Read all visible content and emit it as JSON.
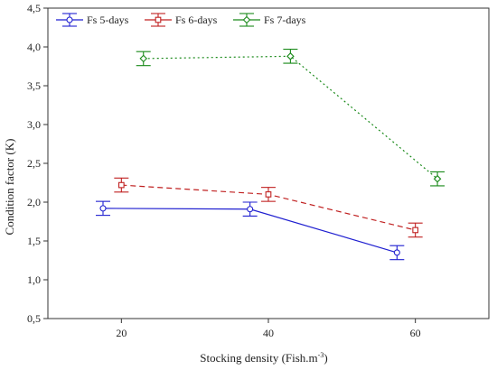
{
  "chart_data": {
    "type": "line",
    "xlabel": "Stocking density (Fish.m",
    "xlabel_superscript": "-3",
    "xlabel_suffix": ")",
    "ylabel": "Condition factor (K)",
    "xlim": [
      10,
      70
    ],
    "ylim": [
      0.5,
      4.5
    ],
    "x_ticks": [
      20,
      40,
      60
    ],
    "y_ticks": [
      "0,5",
      "1,0",
      "1,5",
      "2,0",
      "2,5",
      "3,0",
      "3,5",
      "4,0",
      "4,5"
    ],
    "grid": false,
    "legend_position": "top-left",
    "series": [
      {
        "name": "Fs 5-days",
        "color": "#1f1fd0",
        "dash": "solid",
        "marker": "circle",
        "points": [
          {
            "x": 17.5,
            "y": 1.92,
            "err": 0.09
          },
          {
            "x": 37.5,
            "y": 1.91,
            "err": 0.09
          },
          {
            "x": 57.5,
            "y": 1.35,
            "err": 0.09
          }
        ]
      },
      {
        "name": "Fs 6-days",
        "color": "#c02020",
        "dash": "dashed",
        "marker": "square",
        "points": [
          {
            "x": 20.0,
            "y": 2.22,
            "err": 0.09
          },
          {
            "x": 40.0,
            "y": 2.1,
            "err": 0.09
          },
          {
            "x": 60.0,
            "y": 1.64,
            "err": 0.09
          }
        ]
      },
      {
        "name": "Fs 7-days",
        "color": "#1a8a1a",
        "dash": "dotted",
        "marker": "diamond",
        "points": [
          {
            "x": 23.0,
            "y": 3.85,
            "err": 0.09
          },
          {
            "x": 43.0,
            "y": 3.88,
            "err": 0.09
          },
          {
            "x": 63.0,
            "y": 2.3,
            "err": 0.09
          }
        ]
      }
    ]
  }
}
